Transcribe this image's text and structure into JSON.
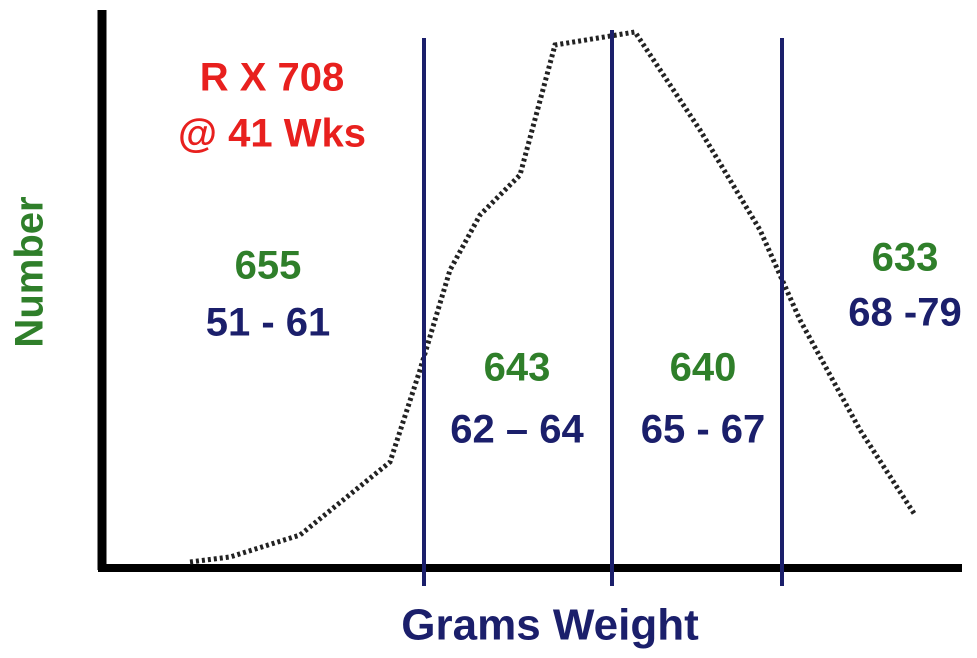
{
  "title": [
    "R X 708",
    "@ 41 Wks"
  ],
  "y_axis_label": "Number",
  "x_axis_label": "Grams Weight",
  "regions": [
    {
      "count": 655,
      "range": "51 - 61"
    },
    {
      "count": 643,
      "range": "62 – 64"
    },
    {
      "count": 640,
      "range": "65 - 67"
    },
    {
      "count": 633,
      "range": "68 -79"
    }
  ]
}
